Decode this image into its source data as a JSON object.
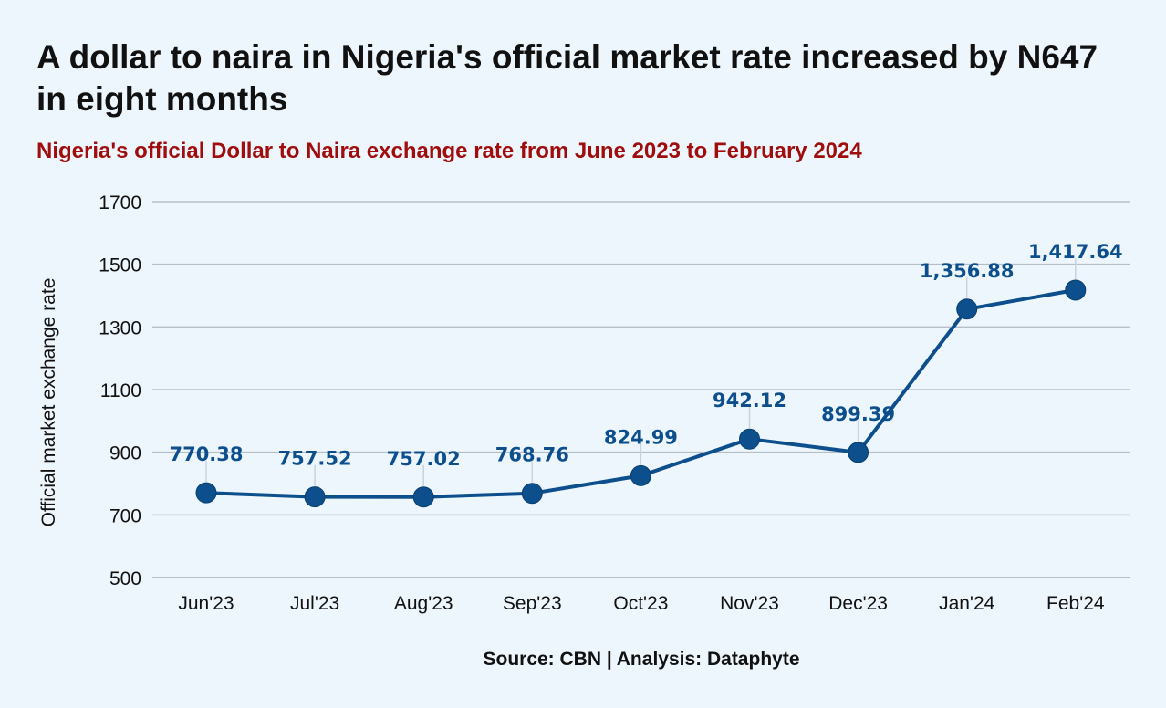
{
  "title": "A dollar to naira in Nigeria's official market rate increased by N647 in eight months",
  "subtitle": "Nigeria's official Dollar to Naira exchange rate from June 2023 to February 2024",
  "source": "Source: CBN | Analysis: Dataphyte",
  "colors": {
    "background": "#eef6fd",
    "line": "#0d4f8c",
    "data_label": "#0d4f8c",
    "subtitle": "#a00d0d",
    "grid": "#b6bec8"
  },
  "chart_data": {
    "type": "line",
    "title": "",
    "xlabel": "",
    "ylabel": "Official market exchange rate",
    "ylim": [
      500,
      1700
    ],
    "yticks": [
      "500",
      "700",
      "900",
      "1100",
      "1300",
      "1500",
      "1700"
    ],
    "grid": true,
    "categories": [
      "Jun'23",
      "Jul'23",
      "Aug'23",
      "Sep'23",
      "Oct'23",
      "Nov'23",
      "Dec'23",
      "Jan'24",
      "Feb'24"
    ],
    "series": [
      {
        "values": [
          770.38,
          757.52,
          757.02,
          768.76,
          824.99,
          942.12,
          899.39,
          1356.88,
          1417.64
        ],
        "labels": [
          "770.38",
          "757.52",
          "757.02",
          "768.76",
          "824.99",
          "942.12",
          "899.39",
          "1,356.88",
          "1,417.64"
        ]
      }
    ]
  }
}
